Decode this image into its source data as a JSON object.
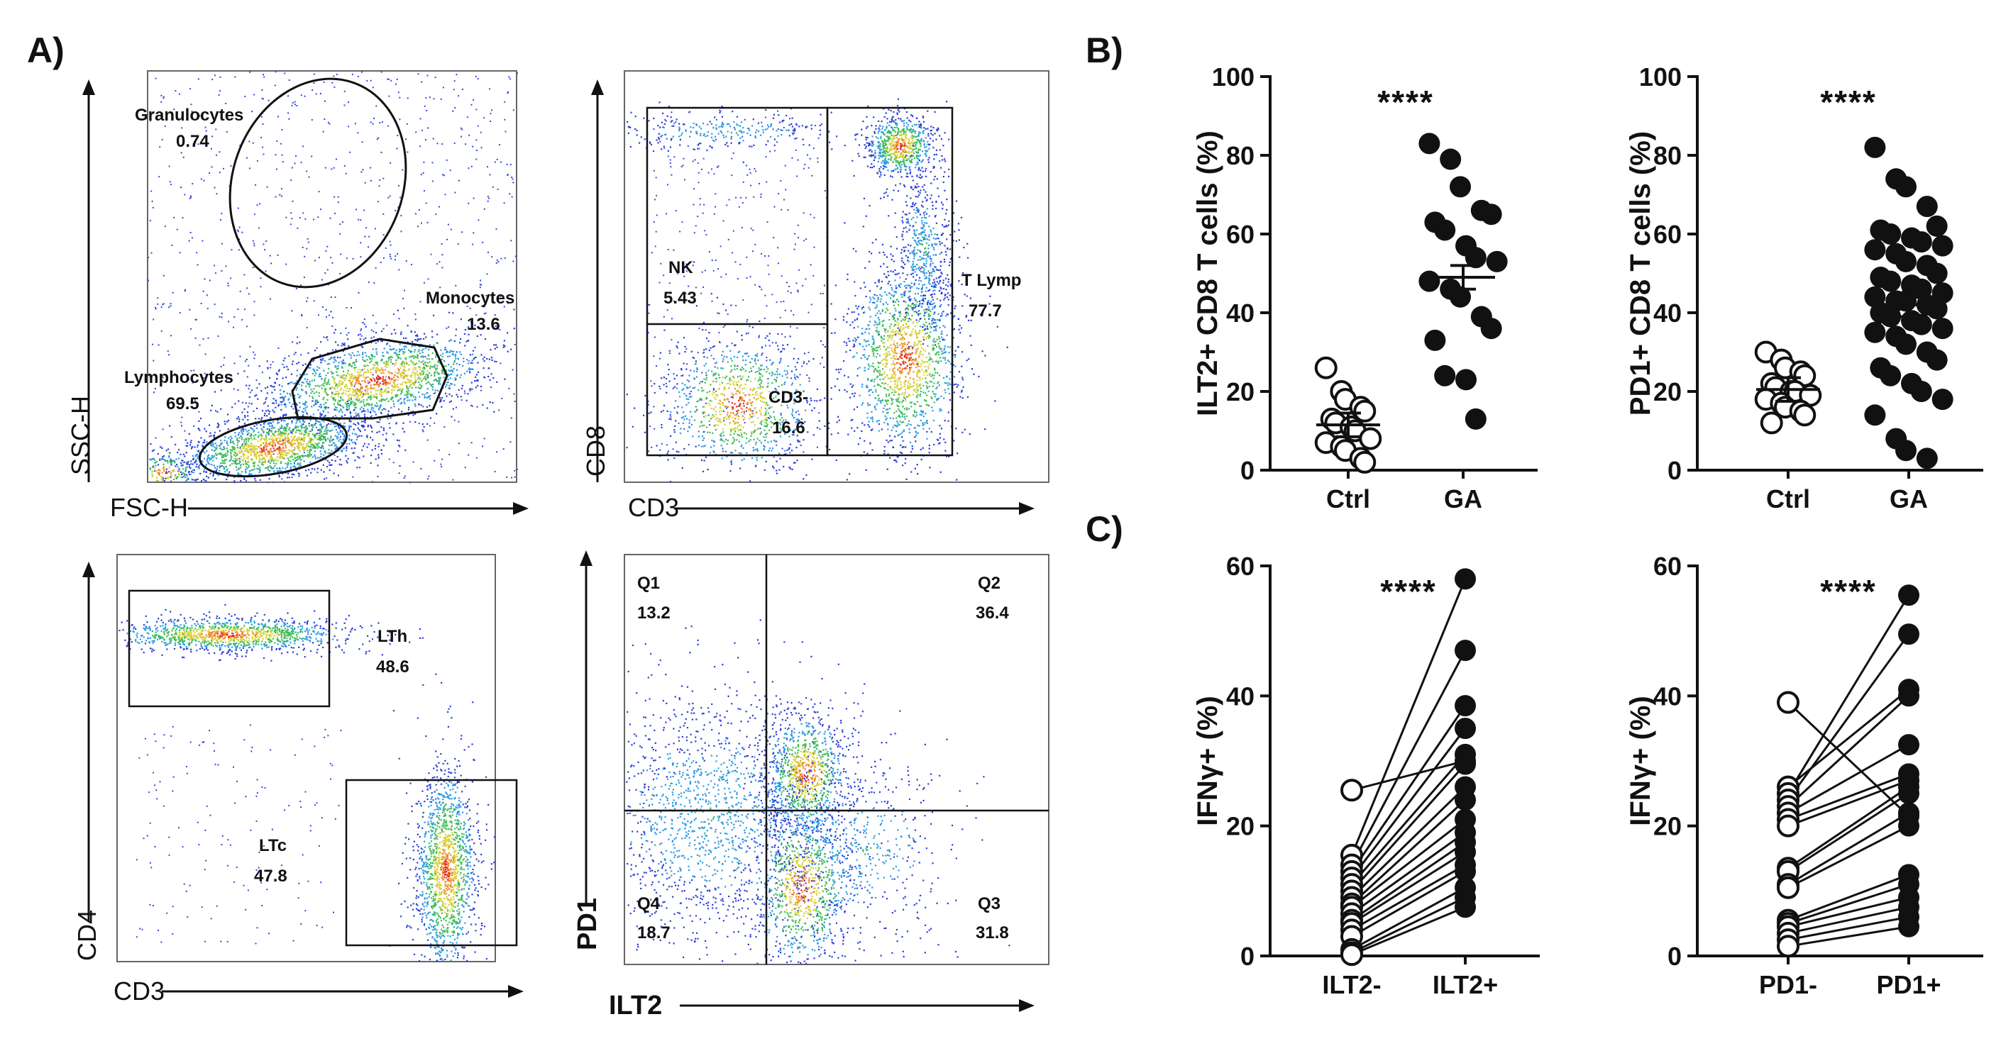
{
  "panel_labels": {
    "a": "A)",
    "b": "B)",
    "c": "C)"
  },
  "flow": [
    {
      "xlabel": "FSC-H",
      "ylabel": "SSC-H",
      "gates": [
        {
          "name": "Granulocytes",
          "value": "0.74"
        },
        {
          "name": "Monocytes",
          "value": "13.6"
        },
        {
          "name": "Lymphocytes",
          "value": "69.5"
        }
      ]
    },
    {
      "xlabel": "CD3",
      "ylabel": "CD8",
      "gates": [
        {
          "name": "NK",
          "value": "5.43"
        },
        {
          "name": "T Lymp",
          "value": "77.7"
        },
        {
          "name": "CD3-",
          "value": "16.6"
        }
      ]
    },
    {
      "xlabel": "CD3",
      "ylabel": "CD4",
      "gates": [
        {
          "name": "LTh",
          "value": "48.6"
        },
        {
          "name": "LTc",
          "value": "47.8"
        }
      ]
    },
    {
      "xlabel": "ILT2",
      "ylabel": "PD1",
      "gates": [
        {
          "name": "Q1",
          "value": "13.2"
        },
        {
          "name": "Q2",
          "value": "36.4"
        },
        {
          "name": "Q4",
          "value": "18.7"
        },
        {
          "name": "Q3",
          "value": "31.8"
        }
      ]
    }
  ],
  "chart_data": [
    {
      "type": "scatter",
      "panel": "B1",
      "ylabel": "ILT2+ CD8 T cells (%)",
      "ylim": [
        0,
        100
      ],
      "yticks": [
        "0",
        "20",
        "40",
        "60",
        "80",
        "100"
      ],
      "categories": [
        "Ctrl",
        "GA"
      ],
      "significance": "****",
      "series": [
        {
          "group": "Ctrl",
          "marker": "open",
          "mean": 11.5,
          "values": [
            26,
            20,
            18,
            16,
            15,
            13,
            12,
            11,
            10,
            8,
            7,
            6,
            5,
            3,
            2
          ]
        },
        {
          "group": "GA",
          "marker": "filled",
          "mean": 49,
          "values": [
            83,
            79,
            72,
            66,
            65,
            63,
            61,
            57,
            54,
            53,
            48,
            46,
            44,
            39,
            36,
            33,
            24,
            23,
            13
          ]
        }
      ]
    },
    {
      "type": "scatter",
      "panel": "B2",
      "ylabel": "PD1+ CD8 T cells  (%)",
      "ylim": [
        0,
        100
      ],
      "yticks": [
        "0",
        "20",
        "40",
        "60",
        "80",
        "100"
      ],
      "categories": [
        "Ctrl",
        "GA"
      ],
      "significance": "****",
      "series": [
        {
          "group": "Ctrl",
          "marker": "open",
          "mean": 20.5,
          "values": [
            30,
            28,
            26,
            25,
            24,
            22,
            21,
            20,
            20,
            19,
            18,
            17,
            16,
            15,
            14,
            12
          ]
        },
        {
          "group": "GA",
          "marker": "filled",
          "mean": 42,
          "values": [
            82,
            74,
            72,
            67,
            62,
            61,
            60,
            59,
            58,
            57,
            56,
            55,
            53,
            52,
            50,
            49,
            48,
            47,
            46,
            45,
            44,
            43,
            43,
            42,
            41,
            40,
            39,
            38,
            37,
            36,
            35,
            34,
            32,
            30,
            28,
            26,
            24,
            22,
            20,
            18,
            14,
            8,
            5,
            3
          ]
        }
      ]
    },
    {
      "type": "line",
      "panel": "C1",
      "ylabel": "IFNγ+ (%)",
      "ylim": [
        0,
        60
      ],
      "yticks": [
        "0",
        "20",
        "40",
        "60"
      ],
      "categories": [
        "ILT2-",
        "ILT2+"
      ],
      "significance": "****",
      "pairs": [
        [
          25.5,
          30
        ],
        [
          15.5,
          58
        ],
        [
          14,
          47
        ],
        [
          13,
          38.5
        ],
        [
          12,
          35
        ],
        [
          11,
          31
        ],
        [
          10,
          29.5
        ],
        [
          9,
          26
        ],
        [
          8,
          24
        ],
        [
          7.5,
          21
        ],
        [
          6.5,
          19
        ],
        [
          5.5,
          17.5
        ],
        [
          5,
          16
        ],
        [
          4,
          14
        ],
        [
          3,
          13
        ],
        [
          1,
          10.5
        ],
        [
          0.5,
          9
        ],
        [
          0.2,
          7.5
        ]
      ]
    },
    {
      "type": "line",
      "panel": "C2",
      "ylabel": "IFNγ+ (%)",
      "ylim": [
        0,
        60
      ],
      "yticks": [
        "0",
        "20",
        "40",
        "60"
      ],
      "categories": [
        "PD1-",
        "PD1+"
      ],
      "significance": "****",
      "pairs": [
        [
          39,
          21.5
        ],
        [
          26,
          41
        ],
        [
          25,
          55.5
        ],
        [
          24,
          49.5
        ],
        [
          23,
          40
        ],
        [
          22,
          32.5
        ],
        [
          21,
          28
        ],
        [
          20,
          27
        ],
        [
          13.5,
          26
        ],
        [
          13,
          25
        ],
        [
          11,
          22
        ],
        [
          10.5,
          20
        ],
        [
          5.5,
          12.5
        ],
        [
          5,
          11
        ],
        [
          4.5,
          9
        ],
        [
          3.5,
          7.5
        ],
        [
          2.5,
          6
        ],
        [
          1.5,
          4.5
        ]
      ]
    }
  ]
}
